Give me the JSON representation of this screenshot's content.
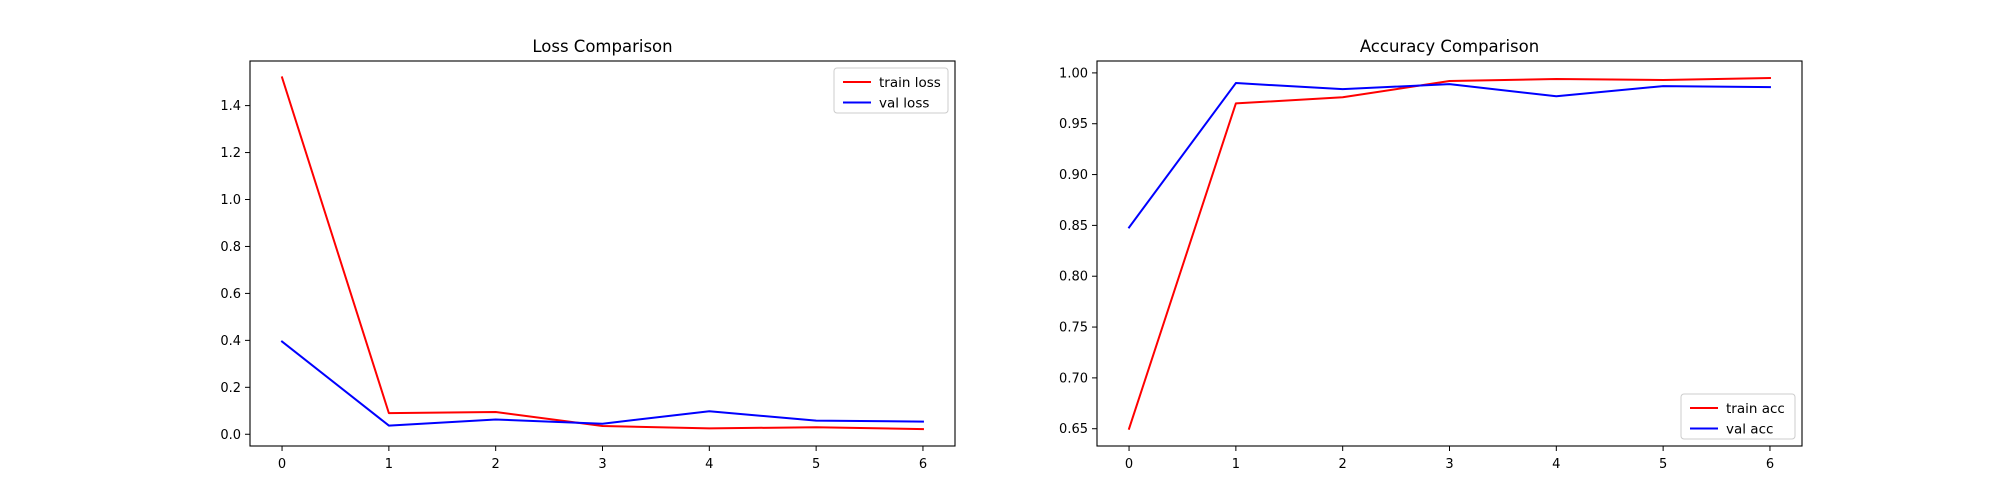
{
  "chart_data": [
    {
      "type": "line",
      "title": "Loss Comparison",
      "xlabel": "",
      "ylabel": "",
      "x": [
        0,
        1,
        2,
        3,
        4,
        5,
        6
      ],
      "xticks": [
        0,
        1,
        2,
        3,
        4,
        5,
        6
      ],
      "xlim": [
        -0.3,
        6.3
      ],
      "yticks": [
        0.0,
        0.2,
        0.4,
        0.6,
        0.8,
        1.0,
        1.2,
        1.4
      ],
      "ylim": [
        -0.05,
        1.59
      ],
      "grid": false,
      "legend_position": "upper right",
      "series": [
        {
          "name": "train loss",
          "color": "#ff0000",
          "values": [
            1.52,
            0.09,
            0.095,
            0.035,
            0.025,
            0.03,
            0.022
          ]
        },
        {
          "name": "val loss",
          "color": "#0000ff",
          "values": [
            0.395,
            0.037,
            0.063,
            0.045,
            0.098,
            0.058,
            0.054
          ]
        }
      ]
    },
    {
      "type": "line",
      "title": "Accuracy Comparison",
      "xlabel": "",
      "ylabel": "",
      "x": [
        0,
        1,
        2,
        3,
        4,
        5,
        6
      ],
      "xticks": [
        0,
        1,
        2,
        3,
        4,
        5,
        6
      ],
      "xlim": [
        -0.3,
        6.3
      ],
      "yticks": [
        0.65,
        0.7,
        0.75,
        0.8,
        0.85,
        0.9,
        0.95,
        1.0
      ],
      "ylim": [
        0.633,
        1.0117
      ],
      "grid": false,
      "legend_position": "lower right",
      "series": [
        {
          "name": "train acc",
          "color": "#ff0000",
          "values": [
            0.65,
            0.97,
            0.976,
            0.992,
            0.994,
            0.993,
            0.995
          ]
        },
        {
          "name": "val acc",
          "color": "#0000ff",
          "values": [
            0.848,
            0.99,
            0.984,
            0.989,
            0.977,
            0.987,
            0.986
          ]
        }
      ]
    }
  ]
}
